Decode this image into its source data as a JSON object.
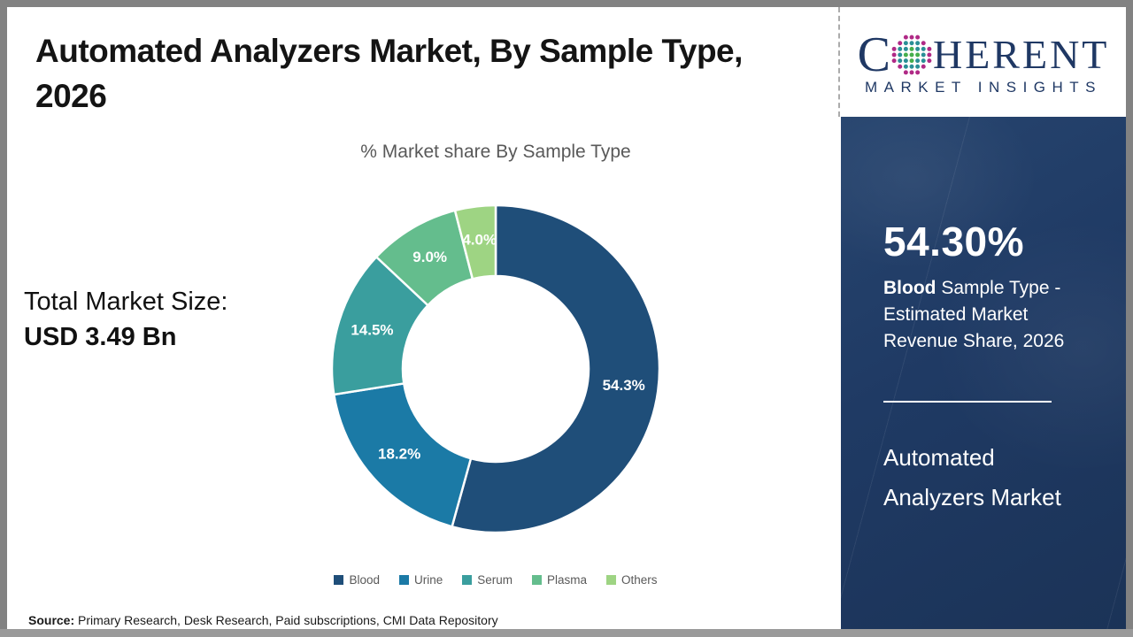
{
  "header": {
    "title": "Automated Analyzers Market, By Sample Type, 2026"
  },
  "logo": {
    "part1": "C",
    "part2": "HERENT",
    "subtitle": "MARKET INSIGHTS",
    "brand_color": "#1f3864",
    "globe_dot_colors": {
      "inner": "#46ae4c",
      "middle": "#2a8f96",
      "outer": "#b02a86"
    }
  },
  "left_panel": {
    "label": "Total Market Size:",
    "value": "USD 3.49 Bn"
  },
  "chart_data": {
    "type": "pie",
    "donut": true,
    "title": "% Market share By Sample Type",
    "categories": [
      "Blood",
      "Urine",
      "Serum",
      "Plasma",
      "Others"
    ],
    "values": [
      54.3,
      18.2,
      14.5,
      9.0,
      4.0
    ],
    "labels": [
      "54.3%",
      "18.2%",
      "14.5%",
      "9.0%",
      "4.0%"
    ],
    "colors": [
      "#1f4e79",
      "#1b7aa6",
      "#3a9e9e",
      "#64bd8d",
      "#9ed483"
    ],
    "slice_border_color": "#ffffff",
    "start_angle_deg": 0,
    "direction": "clockwise",
    "legend_position": "bottom"
  },
  "sidebar": {
    "stat_value": "54.30%",
    "stat_desc_bold": "Blood",
    "stat_desc_rest": " Sample Type - Estimated Market Revenue Share, 2026",
    "market_name_line1": "Automated",
    "market_name_line2": "Analyzers Market",
    "background": "#1f3a64"
  },
  "footer": {
    "source_label": "Source:",
    "source_text": " Primary Research, Desk Research, Paid subscriptions, CMI Data Repository"
  }
}
